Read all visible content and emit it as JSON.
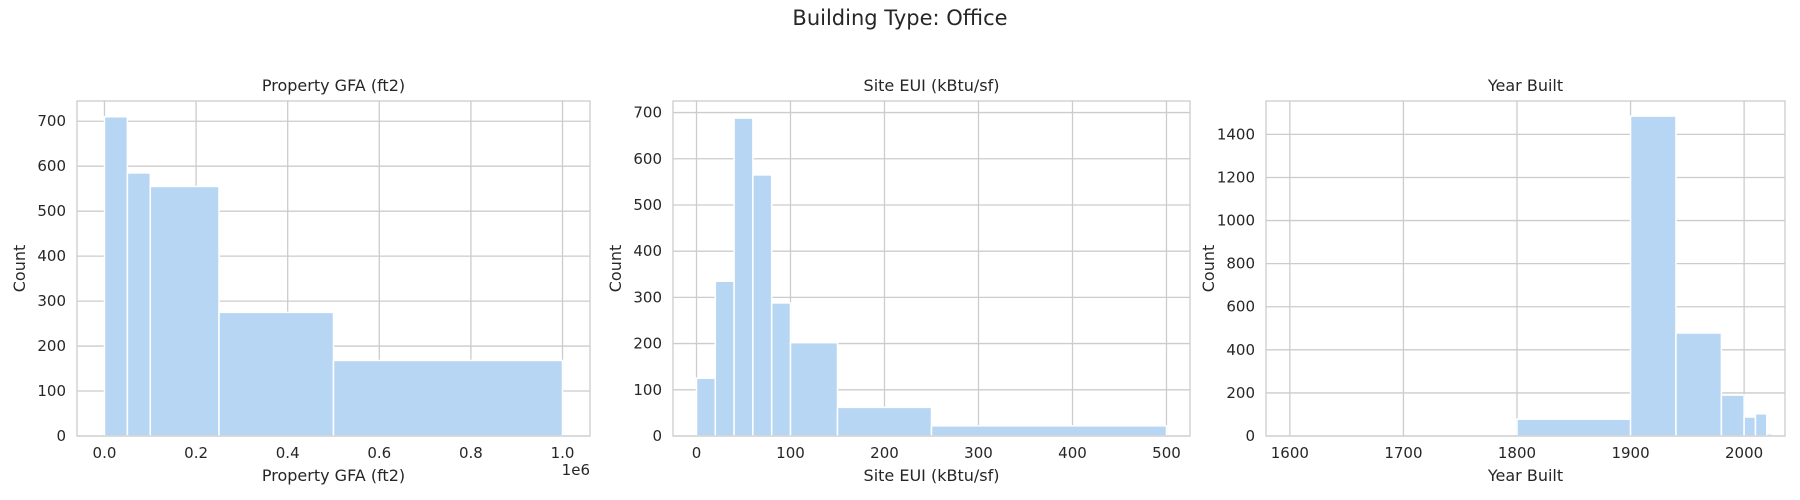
{
  "figure": {
    "title": "Building Type: Office"
  },
  "chart_data": [
    {
      "type": "bar",
      "title": "Property GFA (ft2)",
      "xlabel": "Property GFA (ft2)",
      "ylabel": "Count",
      "x_offset_label": "1e6",
      "xlim": [
        -0.06,
        1.06
      ],
      "ylim": [
        0,
        745
      ],
      "xticks": [
        0.0,
        0.2,
        0.4,
        0.6,
        0.8,
        1.0
      ],
      "xtick_labels": [
        "0.0",
        "0.2",
        "0.4",
        "0.6",
        "0.8",
        "1.0"
      ],
      "yticks": [
        0,
        100,
        200,
        300,
        400,
        500,
        600,
        700
      ],
      "ytick_labels": [
        "0",
        "100",
        "200",
        "300",
        "400",
        "500",
        "600",
        "700"
      ],
      "bins": [
        {
          "x0": 0.0,
          "x1": 0.05,
          "count": 710
        },
        {
          "x0": 0.05,
          "x1": 0.1,
          "count": 585
        },
        {
          "x0": 0.1,
          "x1": 0.25,
          "count": 555
        },
        {
          "x0": 0.25,
          "x1": 0.5,
          "count": 275
        },
        {
          "x0": 0.5,
          "x1": 1.0,
          "count": 168
        }
      ],
      "grid": true,
      "color": "#b7d6f4"
    },
    {
      "type": "bar",
      "title": "Site EUI (kBtu/sf)",
      "xlabel": "Site EUI (kBtu/sf)",
      "ylabel": "Count",
      "xlim": [
        -25,
        525
      ],
      "ylim": [
        0,
        725
      ],
      "xticks": [
        0,
        100,
        200,
        300,
        400,
        500
      ],
      "xtick_labels": [
        "0",
        "100",
        "200",
        "300",
        "400",
        "500"
      ],
      "yticks": [
        0,
        100,
        200,
        300,
        400,
        500,
        600,
        700
      ],
      "ytick_labels": [
        "0",
        "100",
        "200",
        "300",
        "400",
        "500",
        "600",
        "700"
      ],
      "bins": [
        {
          "x0": 0,
          "x1": 20,
          "count": 125
        },
        {
          "x0": 20,
          "x1": 40,
          "count": 335
        },
        {
          "x0": 40,
          "x1": 60,
          "count": 688
        },
        {
          "x0": 60,
          "x1": 80,
          "count": 565
        },
        {
          "x0": 80,
          "x1": 100,
          "count": 288
        },
        {
          "x0": 100,
          "x1": 150,
          "count": 202
        },
        {
          "x0": 150,
          "x1": 250,
          "count": 62
        },
        {
          "x0": 250,
          "x1": 500,
          "count": 22
        }
      ],
      "grid": true,
      "color": "#b7d6f4"
    },
    {
      "type": "bar",
      "title": "Year Built",
      "xlabel": "Year Built",
      "ylabel": "Count",
      "xlim": [
        1579,
        2036
      ],
      "ylim": [
        0,
        1555
      ],
      "xticks": [
        1600,
        1700,
        1800,
        1900,
        2000
      ],
      "xtick_labels": [
        "1600",
        "1700",
        "1800",
        "1900",
        "2000"
      ],
      "yticks": [
        0,
        200,
        400,
        600,
        800,
        1000,
        1200,
        1400
      ],
      "ytick_labels": [
        "0",
        "200",
        "400",
        "600",
        "800",
        "1000",
        "1200",
        "1400"
      ],
      "bins": [
        {
          "x0": 1600,
          "x1": 1800,
          "count": 0
        },
        {
          "x0": 1800,
          "x1": 1900,
          "count": 78
        },
        {
          "x0": 1900,
          "x1": 1940,
          "count": 1485
        },
        {
          "x0": 1940,
          "x1": 1980,
          "count": 478
        },
        {
          "x0": 1980,
          "x1": 2000,
          "count": 190
        },
        {
          "x0": 2000,
          "x1": 2010,
          "count": 88
        },
        {
          "x0": 2010,
          "x1": 2020,
          "count": 103
        },
        {
          "x0": 2020,
          "x1": 2025,
          "count": 10
        }
      ],
      "grid": true,
      "color": "#b7d6f4"
    }
  ]
}
